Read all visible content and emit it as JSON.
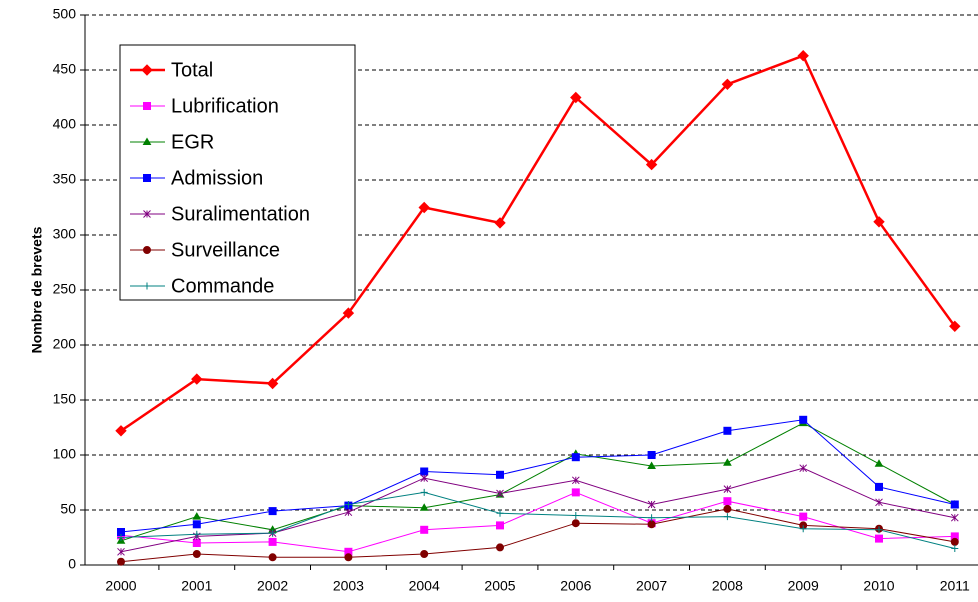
{
  "chart_data": {
    "type": "line",
    "y_label": "Nombre de brevets",
    "categories": [
      "2000",
      "2001",
      "2002",
      "2003",
      "2004",
      "2005",
      "2006",
      "2007",
      "2008",
      "2009",
      "2010",
      "2011"
    ],
    "ylim": [
      0,
      500
    ],
    "yticks": [
      0,
      50,
      100,
      150,
      200,
      250,
      300,
      350,
      400,
      450,
      500
    ],
    "grid": true,
    "legend": "top-left",
    "series": [
      {
        "name": "Total",
        "color": "#ff0000",
        "marker": "diamond",
        "values": [
          122,
          169,
          165,
          229,
          325,
          311,
          425,
          364,
          437,
          463,
          312,
          217
        ]
      },
      {
        "name": "Lubrification",
        "color": "#ff00ff",
        "marker": "square",
        "values": [
          27,
          20,
          21,
          12,
          32,
          36,
          66,
          38,
          58,
          44,
          24,
          26
        ]
      },
      {
        "name": "EGR",
        "color": "#008000",
        "marker": "triangle",
        "values": [
          22,
          44,
          32,
          54,
          52,
          64,
          101,
          90,
          93,
          129,
          92,
          55
        ]
      },
      {
        "name": "Admission",
        "color": "#0000ff",
        "marker": "square",
        "values": [
          30,
          37,
          49,
          54,
          85,
          82,
          98,
          100,
          122,
          132,
          71,
          55
        ]
      },
      {
        "name": "Suralimentation",
        "color": "#800080",
        "marker": "star",
        "values": [
          12,
          26,
          29,
          48,
          79,
          65,
          77,
          55,
          69,
          88,
          57,
          43
        ]
      },
      {
        "name": "Surveillance",
        "color": "#800000",
        "marker": "circle",
        "values": [
          3,
          10,
          7,
          7,
          10,
          16,
          38,
          37,
          51,
          36,
          33,
          21
        ]
      },
      {
        "name": "Commande",
        "color": "#008080",
        "marker": "plus",
        "values": [
          25,
          28,
          29,
          55,
          66,
          47,
          45,
          43,
          44,
          33,
          32,
          15
        ]
      }
    ]
  }
}
